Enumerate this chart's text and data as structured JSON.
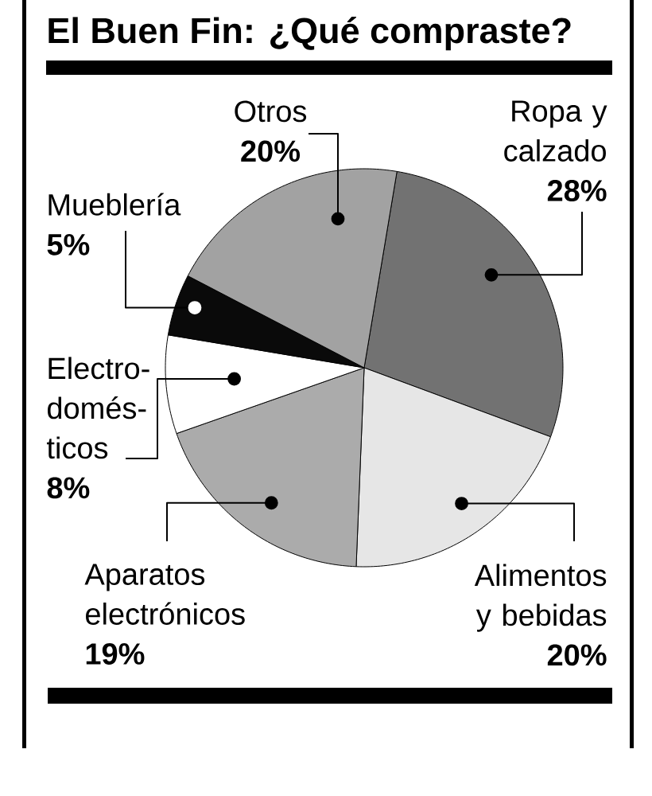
{
  "chart_data": {
    "type": "pie",
    "title": "El Buen Fin: ¿Qué compraste?",
    "categories": [
      "Ropa y calzado",
      "Alimentos y bebidas",
      "Aparatos electrónicos",
      "Electro-domés-ticos",
      "Mueblería",
      "Otros"
    ],
    "values": [
      28,
      20,
      19,
      8,
      5,
      20
    ],
    "value_labels": [
      "28%",
      "20%",
      "19%",
      "8%",
      "5%",
      "20%"
    ],
    "colors": [
      "#727272",
      "#e6e6e6",
      "#ababab",
      "#ffffff",
      "#0a0a0a",
      "#a2a2a2"
    ]
  }
}
